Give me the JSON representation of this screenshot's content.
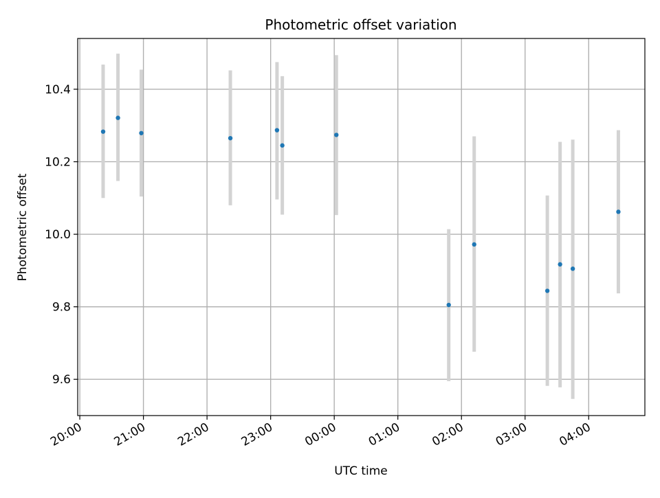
{
  "chart_data": {
    "type": "scatter",
    "title": "Photometric offset variation",
    "xlabel": "UTC time",
    "ylabel": "Photometric offset",
    "x_ticks": [
      "20:00",
      "21:00",
      "22:00",
      "23:00",
      "00:00",
      "01:00",
      "02:00",
      "03:00",
      "04:00"
    ],
    "xlim": [
      "19:58",
      "04:53"
    ],
    "y_ticks": [
      "9.6",
      "9.8",
      "10.0",
      "10.2",
      "10.4"
    ],
    "ylim": [
      9.5,
      10.54
    ],
    "grid": true,
    "marker_color": "#1f77b4",
    "errorbar_color": "#d3d3d3",
    "points": [
      {
        "time": "20:22",
        "y": 10.283,
        "low": 10.1,
        "high": 10.468
      },
      {
        "time": "20:36",
        "y": 10.321,
        "low": 10.147,
        "high": 10.498
      },
      {
        "time": "20:58",
        "y": 10.279,
        "low": 10.104,
        "high": 10.454
      },
      {
        "time": "22:22",
        "y": 10.265,
        "low": 10.08,
        "high": 10.452
      },
      {
        "time": "23:06",
        "y": 10.287,
        "low": 10.096,
        "high": 10.475
      },
      {
        "time": "23:11",
        "y": 10.245,
        "low": 10.054,
        "high": 10.436
      },
      {
        "time": "00:02",
        "y": 10.274,
        "low": 10.053,
        "high": 10.494
      },
      {
        "time": "01:48",
        "y": 9.805,
        "low": 9.595,
        "high": 10.014
      },
      {
        "time": "02:12",
        "y": 9.972,
        "low": 9.676,
        "high": 10.27
      },
      {
        "time": "03:21",
        "y": 9.844,
        "low": 9.582,
        "high": 10.107
      },
      {
        "time": "03:33",
        "y": 9.917,
        "low": 9.578,
        "high": 10.255
      },
      {
        "time": "03:45",
        "y": 9.905,
        "low": 9.546,
        "high": 10.261
      },
      {
        "time": "04:28",
        "y": 10.062,
        "low": 9.837,
        "high": 10.287
      }
    ]
  }
}
